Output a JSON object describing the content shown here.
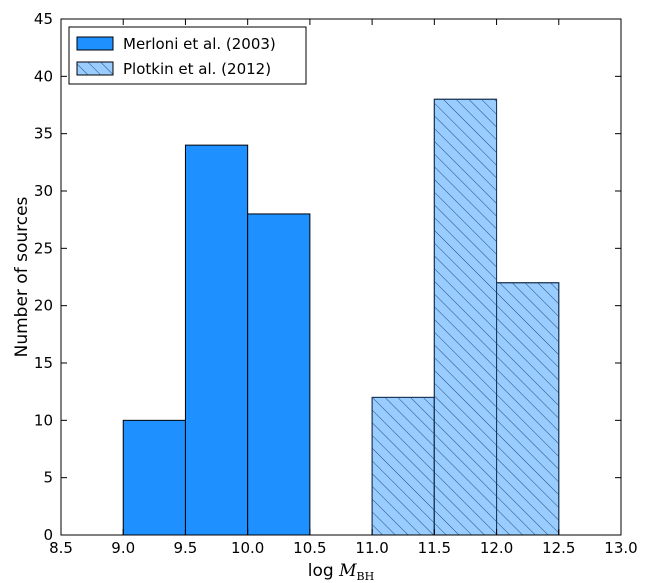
{
  "chart_data": {
    "type": "bar",
    "subtype": "histogram",
    "xlabel_prefix": "log",
    "xlabel_symbol": "M",
    "xlabel_subscript": "BH",
    "ylabel": "Number of sources",
    "xlim": [
      8.5,
      13.0
    ],
    "ylim": [
      0,
      45
    ],
    "xticks": [
      "8.5",
      "9.0",
      "9.5",
      "10.0",
      "10.5",
      "11.0",
      "11.5",
      "12.0",
      "12.5",
      "13.0"
    ],
    "yticks": [
      "0",
      "5",
      "10",
      "15",
      "20",
      "25",
      "30",
      "35",
      "40",
      "45"
    ],
    "grid": false,
    "legend_position": "upper left",
    "series": [
      {
        "name": "Merloni et al. (2003)",
        "color": "#1e90ff",
        "style": "solid",
        "bins": [
          [
            9.0,
            9.5
          ],
          [
            9.5,
            10.0
          ],
          [
            10.0,
            10.5
          ]
        ],
        "values": [
          10,
          34,
          28
        ]
      },
      {
        "name": "Plotkin et al. (2012)",
        "color": "#99ccff",
        "style": "hatched",
        "bins": [
          [
            11.0,
            11.5
          ],
          [
            11.5,
            12.0
          ],
          [
            12.0,
            12.5
          ]
        ],
        "values": [
          12,
          38,
          22
        ]
      }
    ]
  }
}
